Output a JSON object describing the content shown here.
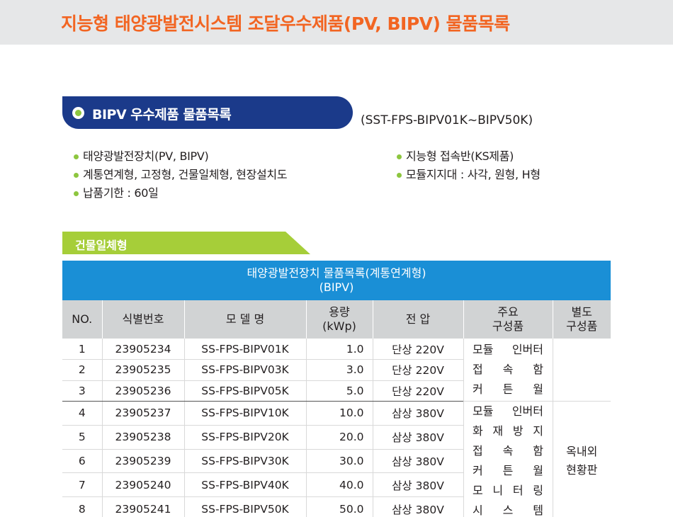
{
  "header": {
    "title": "지능형 태양광발전시스템 조달우수제품(PV, BIPV) 물품목록"
  },
  "section": {
    "title": "BIPV 우수제품 물품목록",
    "model_range": "(SST-FPS-BIPV01K~BIPV50K)"
  },
  "bullets_left": [
    "태양광발전장치(PV, BIPV)",
    "계통연계형, 고정형, 건물일체형, 현장설치도",
    "납품기한 : 60일"
  ],
  "bullets_right": [
    "지능형 접속반(KS제품)",
    "모듈지지대 : 사각, 원형, H형"
  ],
  "tab": {
    "label": "건물일체형"
  },
  "table": {
    "caption_line1": "태양광발전장치 물품목록(계통연계형)",
    "caption_line2": "(BIPV)",
    "headers": {
      "no": "NO.",
      "id": "식별번호",
      "model": "모 델 명",
      "capacity_l1": "용량",
      "capacity_l2": "(kWp)",
      "voltage": "전  압",
      "main_l1": "주요",
      "main_l2": "구성품",
      "sep_l1": "별도",
      "sep_l2": "구성품"
    },
    "rows": [
      {
        "no": "1",
        "id": "23905234",
        "model": "SS-FPS-BIPV01K",
        "capacity": "1.0",
        "voltage": "단상 220V"
      },
      {
        "no": "2",
        "id": "23905235",
        "model": "SS-FPS-BIPV03K",
        "capacity": "3.0",
        "voltage": "단상 220V"
      },
      {
        "no": "3",
        "id": "23905236",
        "model": "SS-FPS-BIPV05K",
        "capacity": "5.0",
        "voltage": "단상 220V"
      },
      {
        "no": "4",
        "id": "23905237",
        "model": "SS-FPS-BIPV10K",
        "capacity": "10.0",
        "voltage": "삼상 380V"
      },
      {
        "no": "5",
        "id": "23905238",
        "model": "SS-FPS-BIPV20K",
        "capacity": "20.0",
        "voltage": "삼상 380V"
      },
      {
        "no": "6",
        "id": "23905239",
        "model": "SS-FPS-BIPV30K",
        "capacity": "30.0",
        "voltage": "삼상 380V"
      },
      {
        "no": "7",
        "id": "23905240",
        "model": "SS-FPS-BIPV40K",
        "capacity": "40.0",
        "voltage": "삼상 380V"
      },
      {
        "no": "8",
        "id": "23905241",
        "model": "SS-FPS-BIPV50K",
        "capacity": "50.0",
        "voltage": "삼상 380V"
      }
    ],
    "group1_components": [
      "모듈 인버터",
      "접 속 함",
      "커 튼 월"
    ],
    "group2_components": [
      "모듈 인버터",
      "화 재 방 지",
      "접 속 함",
      "커 튼 월",
      "모 니 터 링",
      "시 스 템"
    ],
    "group2_separate_l1": "옥내외",
    "group2_separate_l2": "현황판"
  }
}
